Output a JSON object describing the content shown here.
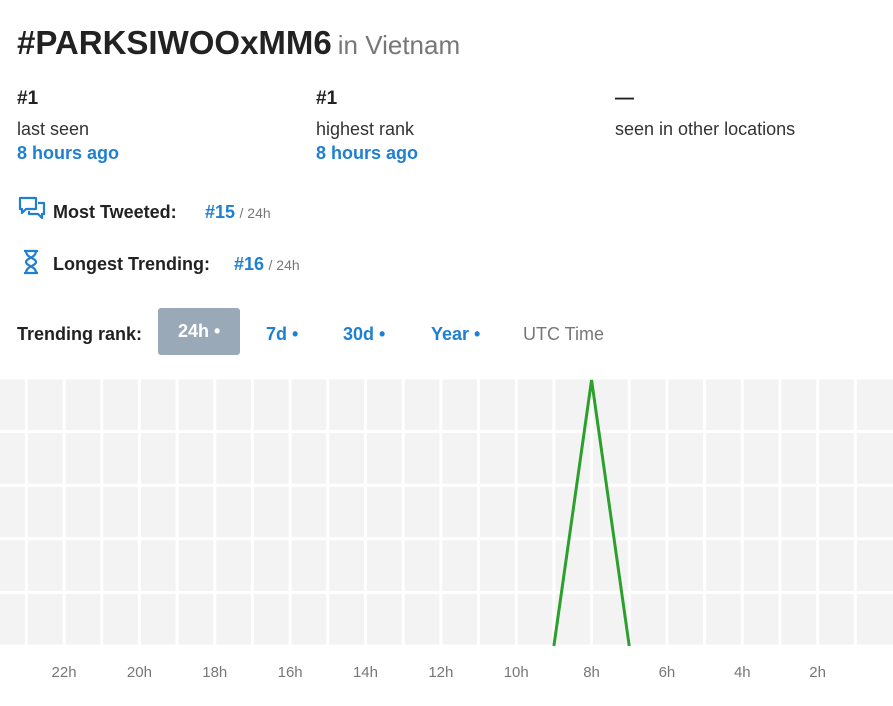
{
  "header": {
    "title": "#PARKSIWOOxMM6",
    "location": "in Vietnam"
  },
  "stats": [
    {
      "value": "#1",
      "label": "last seen",
      "time": "8 hours ago"
    },
    {
      "value": "#1",
      "label": "highest rank",
      "time": "8 hours ago"
    },
    {
      "value": "—",
      "label": "seen in other locations"
    }
  ],
  "records": [
    {
      "label": "Most Tweeted:",
      "rank": "#15",
      "period": "/ 24h"
    },
    {
      "label": "Longest Trending:",
      "rank": "#16",
      "period": "/ 24h"
    }
  ],
  "tabs": {
    "label": "Trending rank:",
    "items": [
      "24h •",
      "7d •",
      "30d •",
      "Year •"
    ],
    "timezone": "UTC Time"
  },
  "chart_data": {
    "type": "line",
    "x": [
      9,
      8,
      7
    ],
    "values": [
      51,
      1,
      51
    ],
    "color": "#2ca02c",
    "xlim": [
      23.7,
      0
    ],
    "ylim": [
      51,
      1
    ],
    "xticks": [
      {
        "value": 22,
        "label": "22h"
      },
      {
        "value": 20,
        "label": "20h"
      },
      {
        "value": 18,
        "label": "18h"
      },
      {
        "value": 16,
        "label": "16h"
      },
      {
        "value": 14,
        "label": "14h"
      },
      {
        "value": 12,
        "label": "12h"
      },
      {
        "value": 10,
        "label": "10h"
      },
      {
        "value": 8,
        "label": "8h"
      },
      {
        "value": 6,
        "label": "6h"
      },
      {
        "value": 4,
        "label": "4h"
      },
      {
        "value": 2,
        "label": "2h"
      }
    ],
    "grid": true
  }
}
